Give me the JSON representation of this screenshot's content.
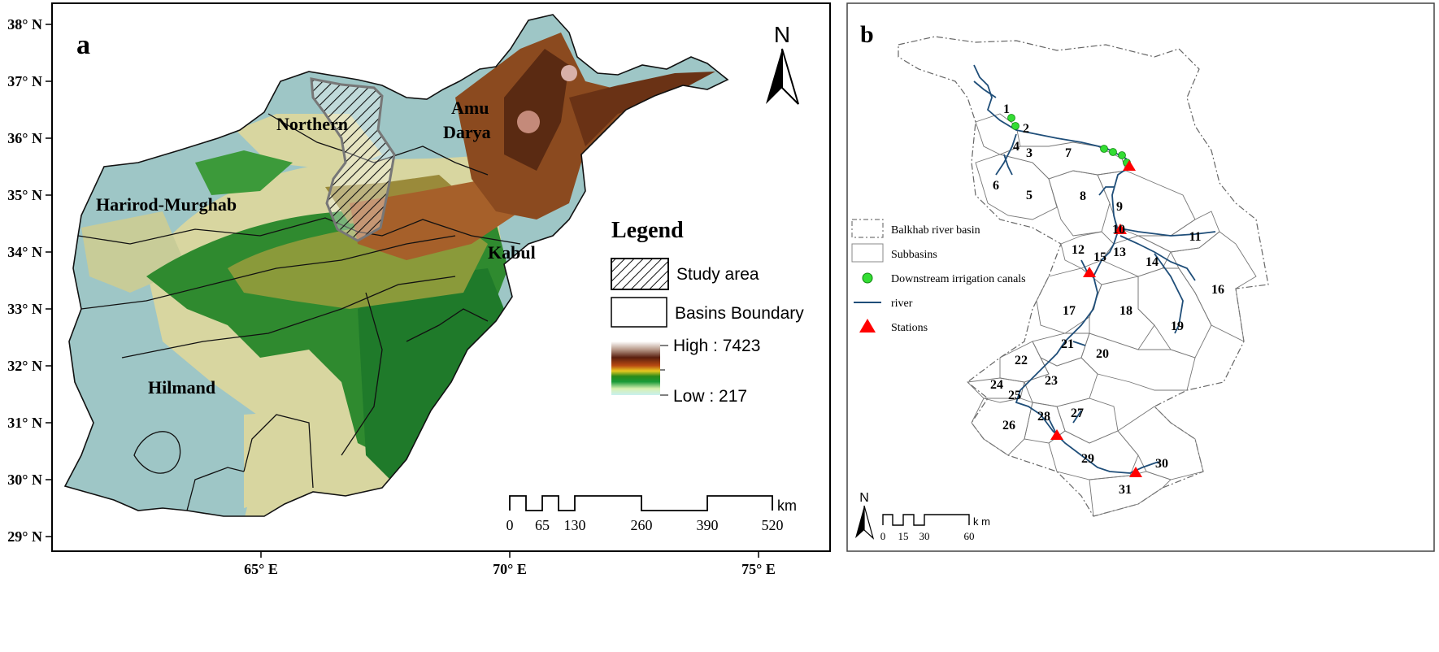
{
  "panel_a": {
    "label": "a",
    "lat_ticks": [
      "38° N",
      "37° N",
      "36° N",
      "35° N",
      "34° N",
      "33° N",
      "32° N",
      "31° N",
      "30° N",
      "29° N"
    ],
    "lon_ticks": [
      "65° E",
      "70° E",
      "75° E"
    ],
    "north": "N",
    "basins": {
      "northern": "Northern",
      "amu": "Amu",
      "darya": "Darya",
      "harirod": "Harirod-Murghab",
      "kabul": "Kabul",
      "hilmand": "Hilmand"
    },
    "legend": {
      "title": "Legend",
      "study_area": "Study area",
      "basins_boundary": "Basins Boundary",
      "high": "High : 7423",
      "low": "Low : 217"
    },
    "scalebar": {
      "unit": "km",
      "labels": [
        "0",
        "65",
        "130",
        "260",
        "390",
        "520"
      ]
    },
    "colors": {
      "low_plain": "#9ec6c6",
      "tan": "#d8d6a0",
      "green": "#2f8a2f",
      "dark_green": "#1f7a2a",
      "olive": "#8a9a3a",
      "brown": "#8b4a1f",
      "dark_brown": "#5a2a12"
    }
  },
  "panel_b": {
    "label": "b",
    "legend": {
      "basin": "Balkhab river basin",
      "subbasins": "Subbasins",
      "canals": "Downstream irrigation canals",
      "river": "river",
      "stations": "Stations"
    },
    "subbasins": [
      "1",
      "2",
      "3",
      "4",
      "5",
      "6",
      "7",
      "8",
      "9",
      "10",
      "11",
      "12",
      "13",
      "14",
      "15",
      "16",
      "17",
      "18",
      "19",
      "20",
      "21",
      "22",
      "23",
      "24",
      "25",
      "26",
      "27",
      "28",
      "29",
      "30",
      "31"
    ],
    "north": "N",
    "scalebar": {
      "unit": "k m",
      "labels": [
        "0",
        "15",
        "30",
        "60"
      ]
    },
    "colors": {
      "river": "#1f4e79",
      "station": "#ff0000",
      "canal": "#33dd33"
    }
  }
}
